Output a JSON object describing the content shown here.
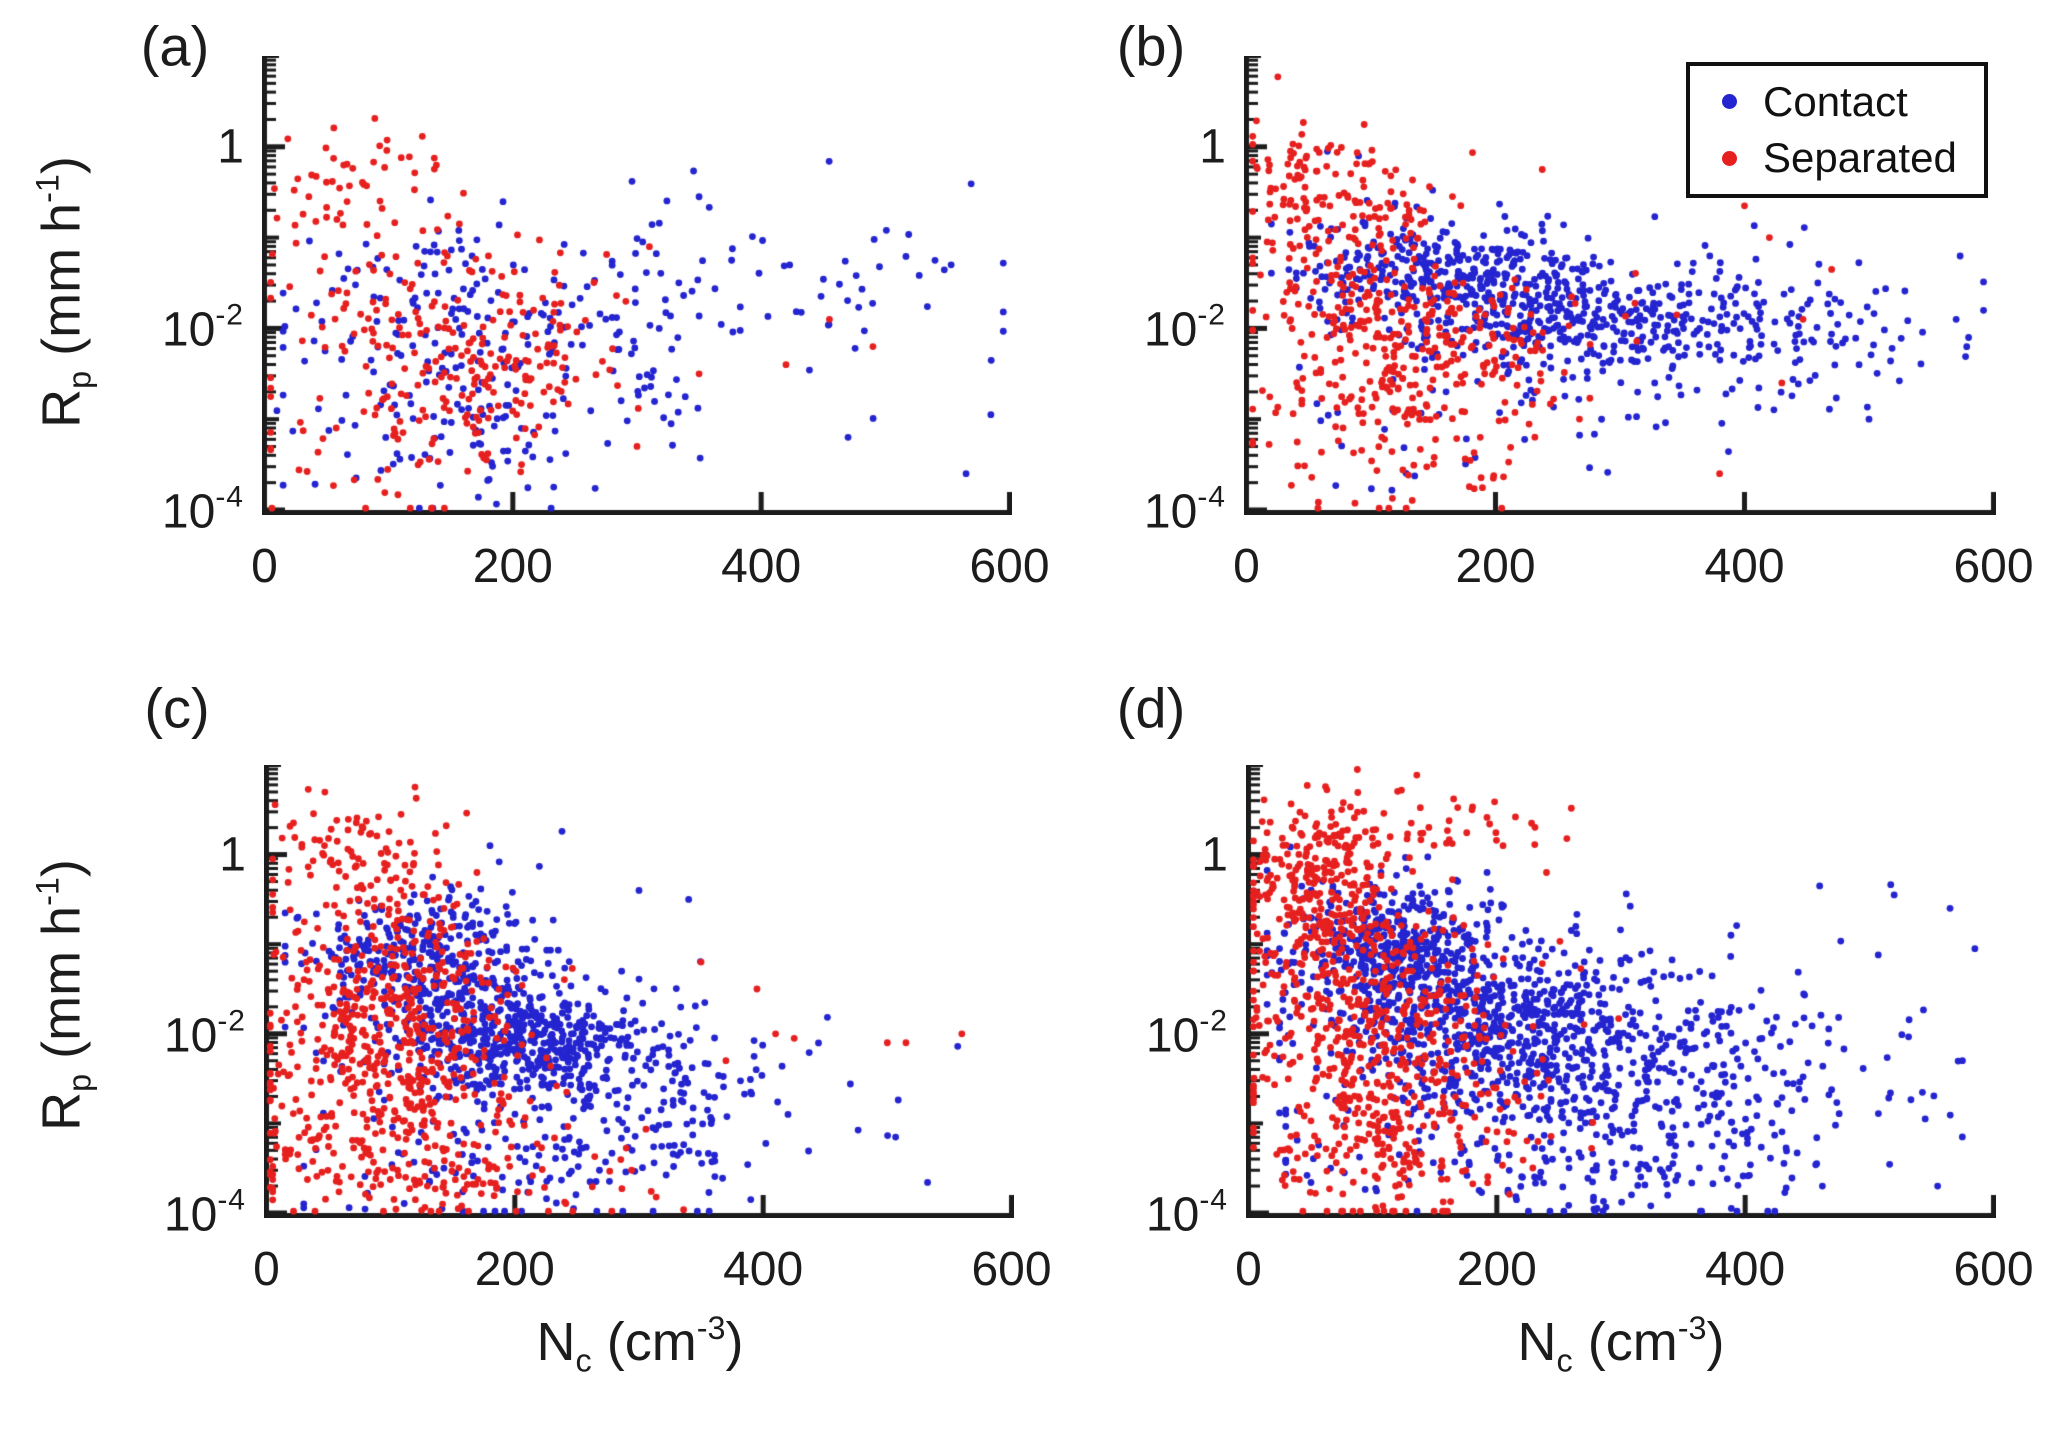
{
  "figure": {
    "background": "#ffffff",
    "axis_color": "#1c1c1c",
    "text_color": "#1c1c1c"
  },
  "legend": {
    "items": [
      {
        "label": "Contact",
        "color": "#2424d0"
      },
      {
        "label": "Separated",
        "color": "#e6201f"
      }
    ]
  },
  "axes": {
    "x": {
      "label_base": "N",
      "label_sub": "c",
      "label_unit": " (cm",
      "label_sup": "-3",
      "label_close": ")",
      "ticks": [
        0,
        200,
        400,
        600
      ],
      "range": [
        0,
        600
      ]
    },
    "y": {
      "label_base": "R",
      "label_sub": "p",
      "label_unit": " (mm h",
      "label_sup": "-1",
      "label_close": ")",
      "tick_exponents": [
        0,
        -2,
        -4
      ],
      "range_exponents": [
        -4,
        1
      ],
      "scale": "log"
    }
  },
  "chart_data": {
    "type": "scatter",
    "title": "",
    "xlabel": "N_c (cm^-3)",
    "ylabel": "R_p (mm h^-1)",
    "x_range": [
      0,
      600
    ],
    "y_range": [
      0.0001,
      10
    ],
    "y_scale": "log",
    "x_ticks": [
      0,
      200,
      400,
      600
    ],
    "y_tick_values": [
      1,
      0.01,
      0.0001
    ],
    "legend_entries": [
      "Contact",
      "Separated"
    ],
    "legend_position": "top-right of panel (b)",
    "point_radius_px": 3.4,
    "grid": false,
    "cluster_format": [
      "n",
      "x_mean",
      "x_sd",
      "x_min",
      "x_max",
      "log10y_mean",
      "log10y_sd",
      "log10y_slope_per_x"
    ],
    "note": "Dense point clouds; each series is encoded as Gaussian clusters (x linear, y in log10 units) estimated from the figure, plus explicit outlier points [x, log10y].",
    "panels": [
      {
        "label": "(a)",
        "series": [
          {
            "name": "Contact",
            "clusters": [
              [
                200,
                210,
                95,
                15,
                590,
                -2.1,
                0.6,
                0
              ],
              [
                70,
                150,
                60,
                10,
                420,
                -3.2,
                0.45,
                0
              ],
              [
                45,
                420,
                90,
                280,
                595,
                -1.45,
                0.45,
                0
              ],
              [
                20,
                120,
                50,
                20,
                300,
                -1.2,
                0.25,
                0
              ]
            ],
            "extra_points": [
              [
                296,
                -0.38
              ],
              [
                585,
                -2.95
              ],
              [
                540,
                -1.25
              ],
              [
                553,
                -1.3
              ],
              [
                470,
                -3.2
              ],
              [
                565,
                -3.6
              ],
              [
                350,
                -0.55
              ]
            ]
          },
          {
            "name": "Separated",
            "clusters": [
              [
                48,
                70,
                35,
                8,
                260,
                -0.35,
                0.3,
                0
              ],
              [
                150,
                140,
                75,
                5,
                340,
                -1.8,
                0.55,
                0
              ],
              [
                80,
                185,
                45,
                60,
                330,
                -2.55,
                0.35,
                0
              ],
              [
                50,
                120,
                70,
                5,
                330,
                -3.4,
                0.4,
                0
              ]
            ],
            "extra_points": [
              [
                455,
                -1.9
              ],
              [
                490,
                -2.2
              ],
              [
                420,
                -2.4
              ],
              [
                350,
                -2.5
              ],
              [
                310,
                -1.1
              ],
              [
                300,
                -3.3
              ]
            ]
          }
        ]
      },
      {
        "label": "(b)",
        "series": [
          {
            "name": "Contact",
            "clusters": [
              [
                260,
                150,
                55,
                20,
                400,
                -1.35,
                0.3,
                0
              ],
              [
                420,
                255,
                75,
                40,
                560,
                -1.85,
                0.35,
                -0.001
              ],
              [
                140,
                420,
                75,
                250,
                592,
                -2.0,
                0.4,
                0
              ],
              [
                40,
                180,
                90,
                30,
                450,
                -3.0,
                0.5,
                0
              ]
            ],
            "extra_points": [
              [
                65,
                -0.05
              ],
              [
                90,
                -0.1
              ],
              [
                580,
                -2.1
              ],
              [
                570,
                -1.9
              ],
              [
                500,
                -3.0
              ]
            ]
          },
          {
            "name": "Separated",
            "clusters": [
              [
                170,
                85,
                45,
                5,
                300,
                -0.9,
                0.5,
                0
              ],
              [
                260,
                140,
                65,
                5,
                380,
                -2.2,
                0.45,
                0
              ],
              [
                90,
                110,
                60,
                5,
                330,
                -3.2,
                0.5,
                0
              ],
              [
                30,
                60,
                30,
                8,
                160,
                -0.15,
                0.2,
                0
              ]
            ],
            "extra_points": [
              [
                420,
                -1.0
              ],
              [
                447,
                -1.9
              ],
              [
                470,
                -1.35
              ],
              [
                430,
                -2.6
              ],
              [
                400,
                -0.65
              ],
              [
                455,
                -0.5
              ],
              [
                380,
                -3.6
              ]
            ]
          }
        ]
      },
      {
        "label": "(c)",
        "series": [
          {
            "name": "Contact",
            "clusters": [
              [
                320,
                130,
                50,
                15,
                400,
                -1.15,
                0.35,
                0
              ],
              [
                520,
                205,
                55,
                30,
                450,
                -2.05,
                0.33,
                -0.0008
              ],
              [
                220,
                280,
                85,
                40,
                560,
                -2.8,
                0.55,
                0
              ],
              [
                60,
                190,
                80,
                30,
                430,
                -3.6,
                0.3,
                0
              ]
            ],
            "extra_points": [
              [
                238,
                0.26
              ],
              [
                180,
                0.1
              ],
              [
                340,
                -0.5
              ],
              [
                420,
                -2.9
              ],
              [
                390,
                -3.85
              ],
              [
                300,
                -0.4
              ]
            ]
          },
          {
            "name": "Separated",
            "clusters": [
              [
                110,
                75,
                40,
                5,
                220,
                -0.1,
                0.4,
                0
              ],
              [
                380,
                95,
                50,
                3,
                320,
                -1.7,
                0.6,
                0
              ],
              [
                240,
                110,
                60,
                3,
                330,
                -2.9,
                0.5,
                0
              ],
              [
                80,
                150,
                80,
                5,
                360,
                -3.7,
                0.25,
                0
              ]
            ],
            "extra_points": [
              [
                395,
                -1.5
              ],
              [
                410,
                -2.0
              ],
              [
                425,
                -2.05
              ],
              [
                500,
                -2.1
              ],
              [
                515,
                -2.1
              ],
              [
                560,
                -2.0
              ],
              [
                350,
                -1.2
              ],
              [
                370,
                -2.3
              ]
            ]
          }
        ]
      },
      {
        "label": "(d)",
        "series": [
          {
            "name": "Contact",
            "clusters": [
              [
                420,
                120,
                45,
                15,
                350,
                -1.05,
                0.4,
                0
              ],
              [
                700,
                200,
                75,
                25,
                520,
                -1.95,
                0.5,
                -0.0012
              ],
              [
                330,
                330,
                100,
                60,
                592,
                -2.5,
                0.7,
                0
              ],
              [
                120,
                250,
                120,
                30,
                592,
                -3.5,
                0.35,
                0
              ]
            ],
            "extra_points": [
              [
                565,
                -0.6
              ],
              [
                585,
                -1.05
              ],
              [
                520,
                -0.45
              ],
              [
                545,
                -2.95
              ],
              [
                555,
                -3.7
              ],
              [
                460,
                -0.35
              ],
              [
                575,
                -2.3
              ]
            ]
          },
          {
            "name": "Separated",
            "clusters": [
              [
                260,
                55,
                30,
                4,
                200,
                -0.35,
                0.45,
                0
              ],
              [
                60,
                120,
                60,
                10,
                260,
                0.3,
                0.2,
                0
              ],
              [
                380,
                105,
                55,
                4,
                320,
                -1.8,
                0.6,
                0
              ],
              [
                240,
                110,
                60,
                4,
                300,
                -3.1,
                0.55,
                0
              ]
            ],
            "extra_points": [
              [
                215,
                0.42
              ],
              [
                228,
                0.35
              ],
              [
                180,
                0.5
              ],
              [
                240,
                -0.2
              ],
              [
                205,
                0.1
              ]
            ]
          }
        ]
      }
    ]
  }
}
